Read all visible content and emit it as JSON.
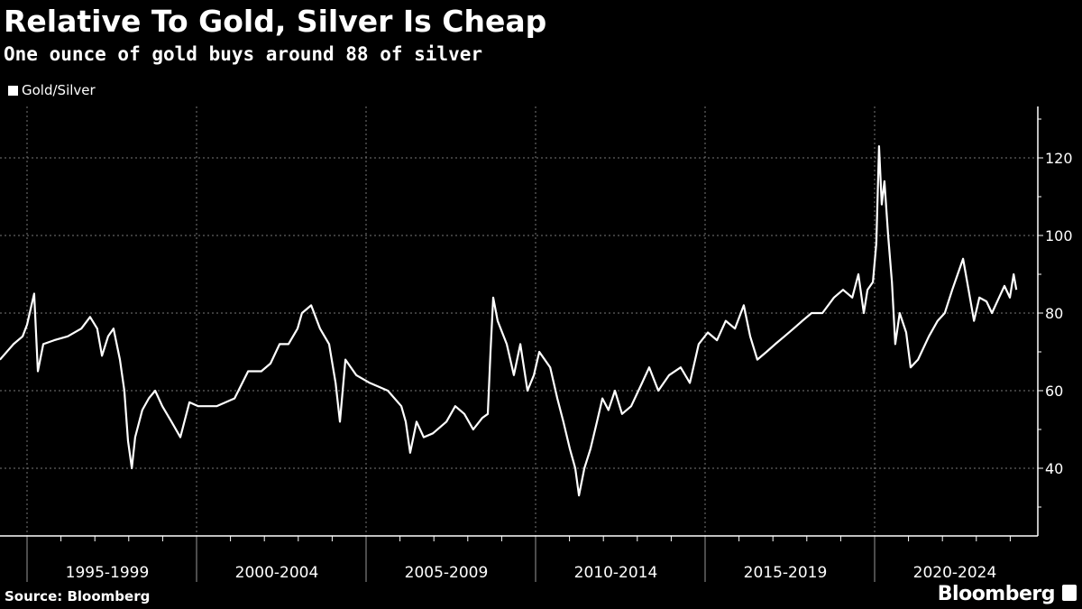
{
  "header": {
    "title": "Relative To Gold, Silver Is Cheap",
    "subtitle": "One ounce of gold buys around 88 of silver"
  },
  "footer": {
    "source": "Source: Bloomberg",
    "brand": "Bloomberg"
  },
  "chart_data": {
    "type": "line",
    "title": "Relative To Gold, Silver Is Cheap",
    "subtitle": "One ounce of gold buys around 88 of silver",
    "legend_position": "top-left",
    "grid": true,
    "line_color": "#ffffff",
    "background": "#000000",
    "xlim": [
      1994.2,
      2024.8
    ],
    "ylim": [
      22,
      133
    ],
    "y_ticks": [
      40,
      60,
      80,
      100,
      120
    ],
    "y_axis_side": "right",
    "x_tick_groups": [
      {
        "label": "1995-1999",
        "start": 1995,
        "end": 2000
      },
      {
        "label": "2000-2004",
        "start": 2000,
        "end": 2005
      },
      {
        "label": "2005-2009",
        "start": 2005,
        "end": 2010
      },
      {
        "label": "2010-2014",
        "start": 2010,
        "end": 2015
      },
      {
        "label": "2015-2019",
        "start": 2015,
        "end": 2020
      },
      {
        "label": "2020-2024",
        "start": 2020,
        "end": 2025
      }
    ],
    "series": [
      {
        "name": "Gold/Silver",
        "x": [
          1994.2,
          1994.6,
          1994.87,
          1995.0,
          1995.13,
          1995.21,
          1995.32,
          1995.48,
          1995.8,
          1996.2,
          1996.6,
          1996.86,
          1997.07,
          1997.21,
          1997.39,
          1997.55,
          1997.74,
          1997.87,
          1997.98,
          1998.09,
          1998.19,
          1998.4,
          1998.59,
          1998.78,
          1998.99,
          1999.26,
          1999.52,
          1999.79,
          2000.05,
          2000.59,
          2001.12,
          2001.52,
          2001.91,
          2002.18,
          2002.45,
          2002.71,
          2002.98,
          2003.11,
          2003.38,
          2003.64,
          2003.91,
          2004.1,
          2004.23,
          2004.39,
          2004.71,
          2005.11,
          2005.64,
          2006.04,
          2006.17,
          2006.3,
          2006.49,
          2006.7,
          2006.97,
          2007.37,
          2007.63,
          2007.9,
          2008.16,
          2008.43,
          2008.59,
          2008.67,
          2008.75,
          2008.88,
          2009.15,
          2009.36,
          2009.55,
          2009.76,
          2009.95,
          2010.11,
          2010.43,
          2010.64,
          2010.82,
          2011.01,
          2011.17,
          2011.28,
          2011.44,
          2011.62,
          2011.81,
          2011.97,
          2012.15,
          2012.34,
          2012.55,
          2012.82,
          2013.14,
          2013.35,
          2013.62,
          2013.94,
          2014.28,
          2014.55,
          2014.81,
          2015.08,
          2015.35,
          2015.61,
          2015.88,
          2016.14,
          2016.33,
          2016.54,
          2016.81,
          2017.07,
          2017.34,
          2017.61,
          2017.87,
          2018.14,
          2018.46,
          2018.8,
          2019.07,
          2019.34,
          2019.52,
          2019.68,
          2019.79,
          2019.95,
          2020.05,
          2020.13,
          2020.21,
          2020.29,
          2020.4,
          2020.51,
          2020.61,
          2020.74,
          2020.93,
          2021.06,
          2021.28,
          2021.6,
          2021.86,
          2022.07,
          2022.29,
          2022.45,
          2022.61,
          2022.77,
          2022.93,
          2023.09,
          2023.3,
          2023.46,
          2023.67,
          2023.83,
          2023.99,
          2024.1,
          2024.18
        ],
        "values": [
          68,
          72,
          74,
          77,
          82,
          85,
          65,
          72,
          73,
          74,
          76,
          79,
          76,
          69,
          74,
          76,
          68,
          60,
          47,
          40,
          48,
          55,
          58,
          60,
          56,
          52,
          48,
          57,
          56,
          56,
          58,
          65,
          65,
          67,
          72,
          72,
          76,
          80,
          82,
          76,
          72,
          62,
          52,
          68,
          64,
          62,
          60,
          56,
          52,
          44,
          52,
          48,
          49,
          52,
          56,
          54,
          50,
          53,
          54,
          70,
          84,
          78,
          72,
          64,
          72,
          60,
          64,
          70,
          66,
          58,
          52,
          45,
          40,
          33,
          40,
          45,
          52,
          58,
          55,
          60,
          54,
          56,
          62,
          66,
          60,
          64,
          66,
          62,
          72,
          75,
          73,
          78,
          76,
          82,
          74,
          68,
          70,
          72,
          74,
          76,
          78,
          80,
          80,
          84,
          86,
          84,
          90,
          80,
          86,
          88,
          98,
          123,
          108,
          114,
          100,
          88,
          72,
          80,
          75,
          66,
          68,
          74,
          78,
          80,
          86,
          90,
          94,
          86,
          78,
          84,
          83,
          80,
          84,
          87,
          84,
          90,
          86
        ]
      }
    ]
  }
}
